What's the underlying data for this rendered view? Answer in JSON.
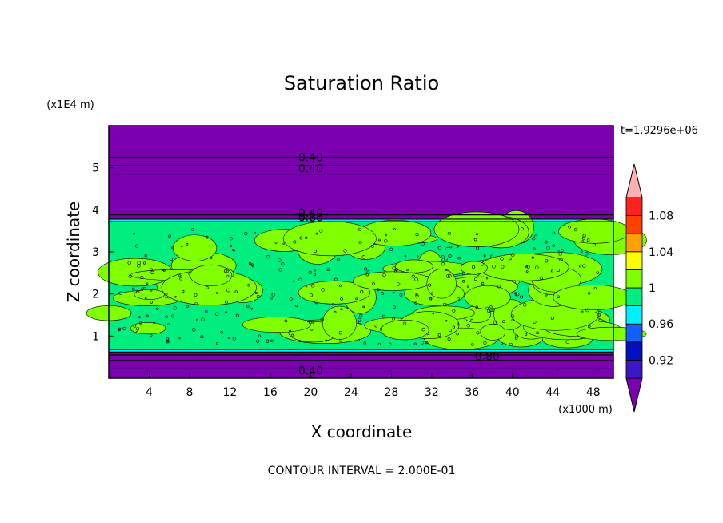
{
  "chart_data": {
    "type": "heatmap",
    "title": "Saturation Ratio",
    "xlabel": "X coordinate",
    "ylabel": "Z coordinate",
    "x_unit": "(x1000 m)",
    "y_unit": "(x1E4 m)",
    "time_label": "t=1.9296e+06",
    "footer": "CONTOUR INTERVAL = 2.000E-01",
    "xlim": [
      0,
      50
    ],
    "ylim": [
      0,
      6
    ],
    "xticks": [
      "4",
      "8",
      "12",
      "16",
      "20",
      "24",
      "28",
      "32",
      "36",
      "40",
      "44",
      "48"
    ],
    "yticks": [
      "1",
      "2",
      "3",
      "4",
      "5"
    ],
    "colorbar": {
      "levels": [
        0.9,
        0.92,
        0.94,
        0.96,
        0.98,
        1.0,
        1.02,
        1.04,
        1.06,
        1.08,
        1.1
      ],
      "tick_labels": [
        "0.92",
        "0.96",
        "1",
        "1.04",
        "1.08"
      ],
      "colors": [
        "#7a00b0",
        "#3a18c8",
        "#0010c0",
        "#1060ff",
        "#00f0ff",
        "#00ee80",
        "#80ff00",
        "#ffff00",
        "#ffa000",
        "#ff4000",
        "#ff2020",
        "#ffb0b0"
      ]
    },
    "bands": [
      {
        "zmin": 0.0,
        "zmax": 0.62,
        "value": "<0.90",
        "color": "#7a00b0"
      },
      {
        "zmin": 0.62,
        "zmax": 0.68,
        "value": "0.96-0.98",
        "color": "#00f0ff"
      },
      {
        "zmin": 0.68,
        "zmax": 3.72,
        "value": "0.98-1.02",
        "color": "#00ee80"
      },
      {
        "zmin": 3.72,
        "zmax": 3.78,
        "value": "0.96-0.98",
        "color": "#00f0ff"
      },
      {
        "zmin": 3.78,
        "zmax": 6.0,
        "value": "<0.90",
        "color": "#7a00b0"
      }
    ],
    "contour_labels": [
      "0.40",
      "0.40",
      "0.40",
      "0.80",
      "0.80",
      "0.40"
    ],
    "colors": {
      "plot_border": "#000000",
      "contour_line": "#000000",
      "background": "#ffffff"
    }
  }
}
